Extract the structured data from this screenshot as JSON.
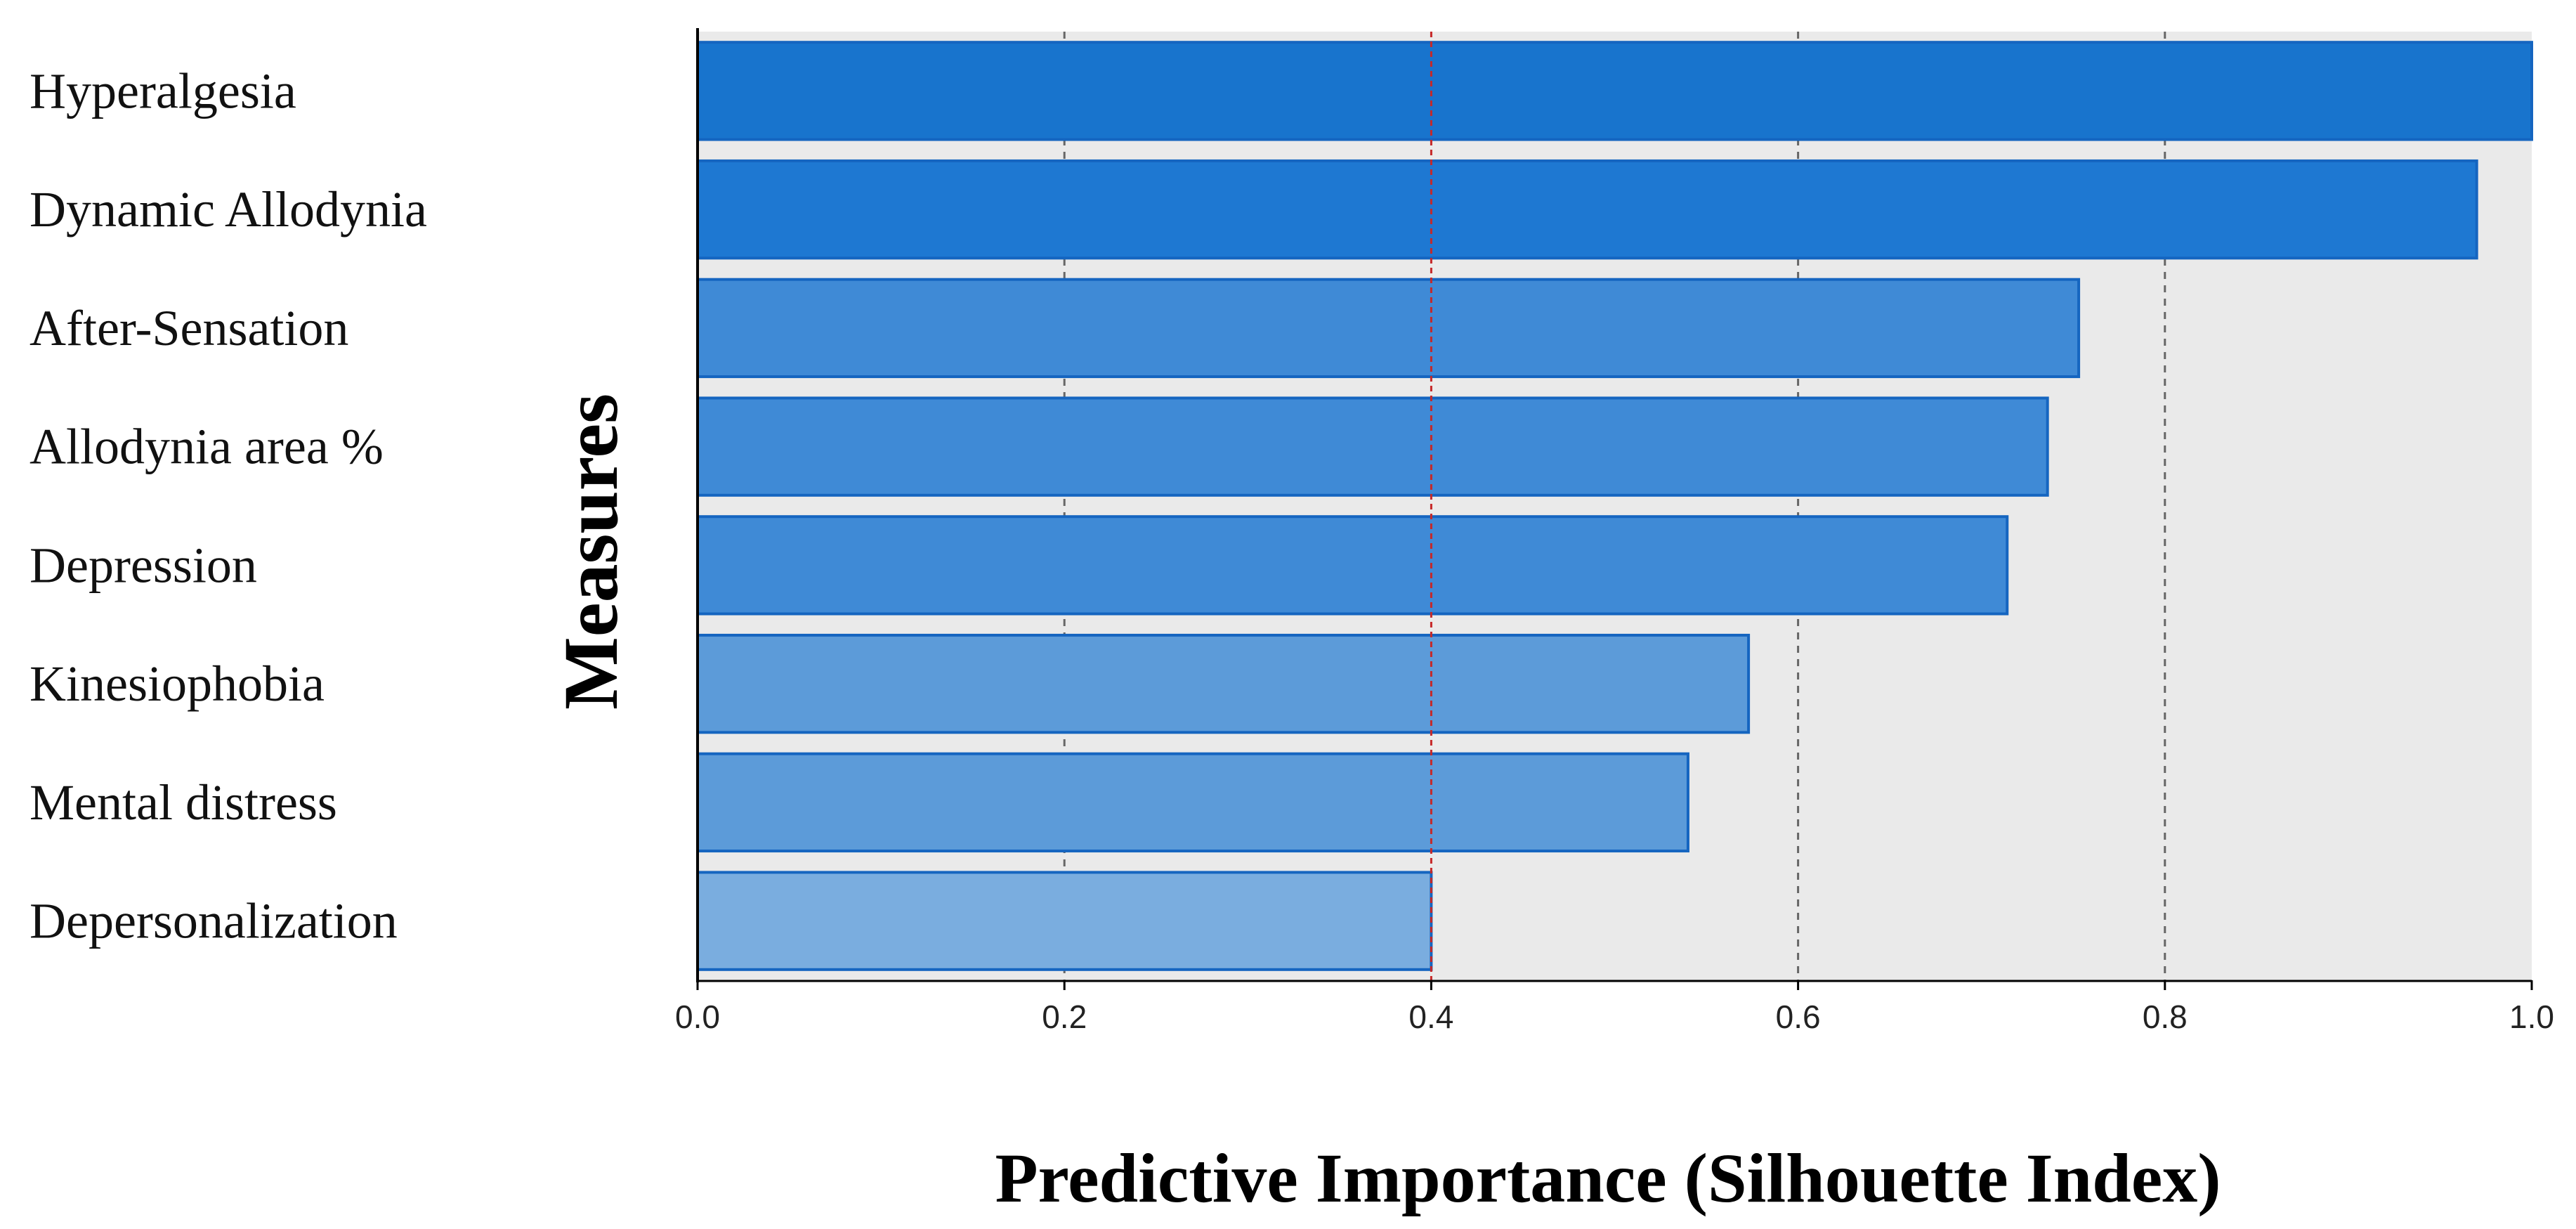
{
  "chart_data": {
    "type": "bar",
    "orientation": "horizontal",
    "title": "",
    "xlabel": "Predictive Importance (Silhouette Index)",
    "ylabel": "Measures",
    "categories": [
      "Hyperalgesia",
      "Dynamic Allodynia",
      "After-Sensation",
      "Allodynia area %",
      "Depression",
      "Kinesiophobia",
      "Mental distress",
      "Depersonalization"
    ],
    "values": [
      1.0,
      0.97,
      0.753,
      0.736,
      0.714,
      0.573,
      0.54,
      0.4
    ],
    "xlim": [
      0.0,
      1.0
    ],
    "xticks": [
      "0.0",
      "0.2",
      "0.4",
      "0.6",
      "0.8",
      "1.0"
    ],
    "grid": "vertical dashed at 0.2, 0.6, 0.8",
    "reference_line": {
      "value": 0.4,
      "color": "#c62828"
    },
    "bar_colors": [
      "#1874cd",
      "#1e78d2",
      "#3f8ad6",
      "#3f8ad6",
      "#3f8ad6",
      "#5c9bd9",
      "#5c9bd9",
      "#7aaddf"
    ],
    "bar_edge_color": "#1565c0",
    "plot_background": "#eaeaea",
    "legend": "none"
  }
}
